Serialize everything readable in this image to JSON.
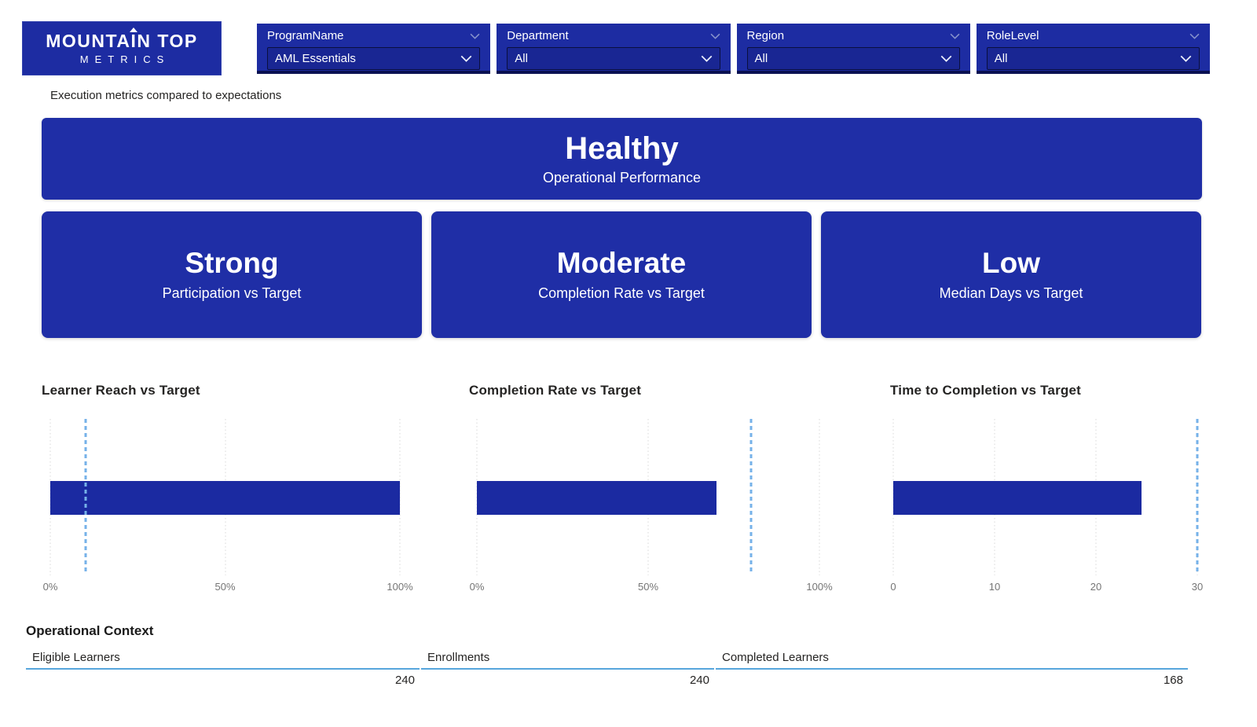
{
  "brand": {
    "name_prefix": "MOUNTA",
    "arrow_letter": "I",
    "name_suffix": "N TOP",
    "subtitle": "METRICS"
  },
  "slicers": [
    {
      "label": "ProgramName",
      "value": "AML Essentials"
    },
    {
      "label": "Department",
      "value": "All"
    },
    {
      "label": "Region",
      "value": "All"
    },
    {
      "label": "RoleLevel",
      "value": "All"
    }
  ],
  "subtitle": "Execution metrics compared to expectations",
  "status_banner": {
    "status": "Healthy",
    "caption": "Operational Performance"
  },
  "kpi_cards": [
    {
      "status": "Strong",
      "caption": "Participation vs Target"
    },
    {
      "status": "Moderate",
      "caption": "Completion Rate vs Target"
    },
    {
      "status": "Low",
      "caption": "Median Days vs Target"
    }
  ],
  "chart_data": [
    {
      "type": "bar",
      "orientation": "horizontal",
      "title": "Learner Reach vs Target",
      "value": 100,
      "target": 10,
      "axis_min": 0,
      "axis_max": 100,
      "tick_labels": [
        "0%",
        "50%",
        "100%"
      ],
      "bar_color": "#1B2AA1",
      "target_color": "#76B2E9",
      "gridlines": "dotted"
    },
    {
      "type": "bar",
      "orientation": "horizontal",
      "title": "Completion Rate vs Target",
      "value": 70,
      "target": 80,
      "axis_min": 0,
      "axis_max": 100,
      "tick_labels": [
        "0%",
        "50%",
        "100%"
      ],
      "bar_color": "#1B2AA1",
      "target_color": "#76B2E9",
      "gridlines": "dotted"
    },
    {
      "type": "bar",
      "orientation": "horizontal",
      "title": "Time to Completion vs Target",
      "value": 24.5,
      "target": 30,
      "axis_min": 0,
      "axis_max": 30,
      "tick_labels": [
        "0",
        "10",
        "20",
        "30"
      ],
      "bar_color": "#1B2AA1",
      "target_color": "#76B2E9",
      "gridlines": "dotted"
    }
  ],
  "context_table": {
    "title": "Operational Context",
    "columns": [
      {
        "header": "Eligible Learners",
        "value": "240"
      },
      {
        "header": "Enrollments",
        "value": "240"
      },
      {
        "header": "Completed Learners",
        "value": "168"
      }
    ]
  },
  "colors": {
    "primary_blue": "#1D2CA2",
    "card_blue": "#1F2EA6",
    "bar_blue": "#1B2AA1",
    "target_blue": "#76B2E9",
    "navy_border": "#0A1152",
    "table_rule_blue": "#57A6DC",
    "text_dark": "#252423",
    "axis_gray": "#757575"
  }
}
